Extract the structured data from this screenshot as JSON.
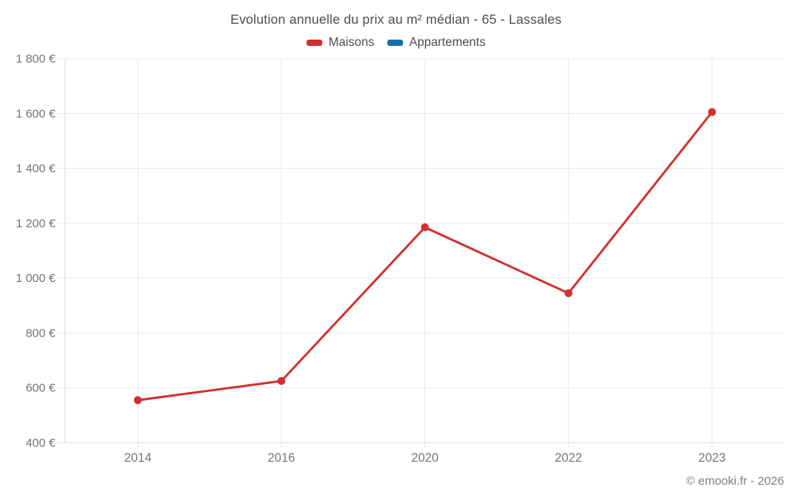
{
  "chart": {
    "title": "Evolution annuelle du prix au m² médian - 65 - Lassales"
  },
  "legend": {
    "items": [
      {
        "label": "Maisons",
        "color": "#d32f2f"
      },
      {
        "label": "Appartements",
        "color": "#186fa4"
      }
    ]
  },
  "footer": {
    "attribution": "© emooki.fr - 2026"
  },
  "colors": {
    "grid": "#e9e9e9",
    "axis": "#dcdcdc",
    "tick_label": "#757575",
    "title_text": "#4d4d4d"
  },
  "chart_data": {
    "type": "line",
    "title": "Evolution annuelle du prix au m² médian - 65 - Lassales",
    "categories": [
      "2014",
      "2016",
      "2020",
      "2022",
      "2023"
    ],
    "series": [
      {
        "name": "Maisons",
        "color": "#d32f2f",
        "values": [
          555,
          625,
          1185,
          945,
          1605
        ]
      },
      {
        "name": "Appartements",
        "color": "#186fa4",
        "values": []
      }
    ],
    "xlabel": "",
    "ylabel": "",
    "ylim": [
      400,
      1800
    ],
    "y_tick_step": 200,
    "y_tick_labels": [
      "400 €",
      "600 €",
      "800 €",
      "1 000 €",
      "1 200 €",
      "1 400 €",
      "1 600 €",
      "1 800 €"
    ],
    "grid": true,
    "legend_position": "top",
    "marker": "circle"
  }
}
